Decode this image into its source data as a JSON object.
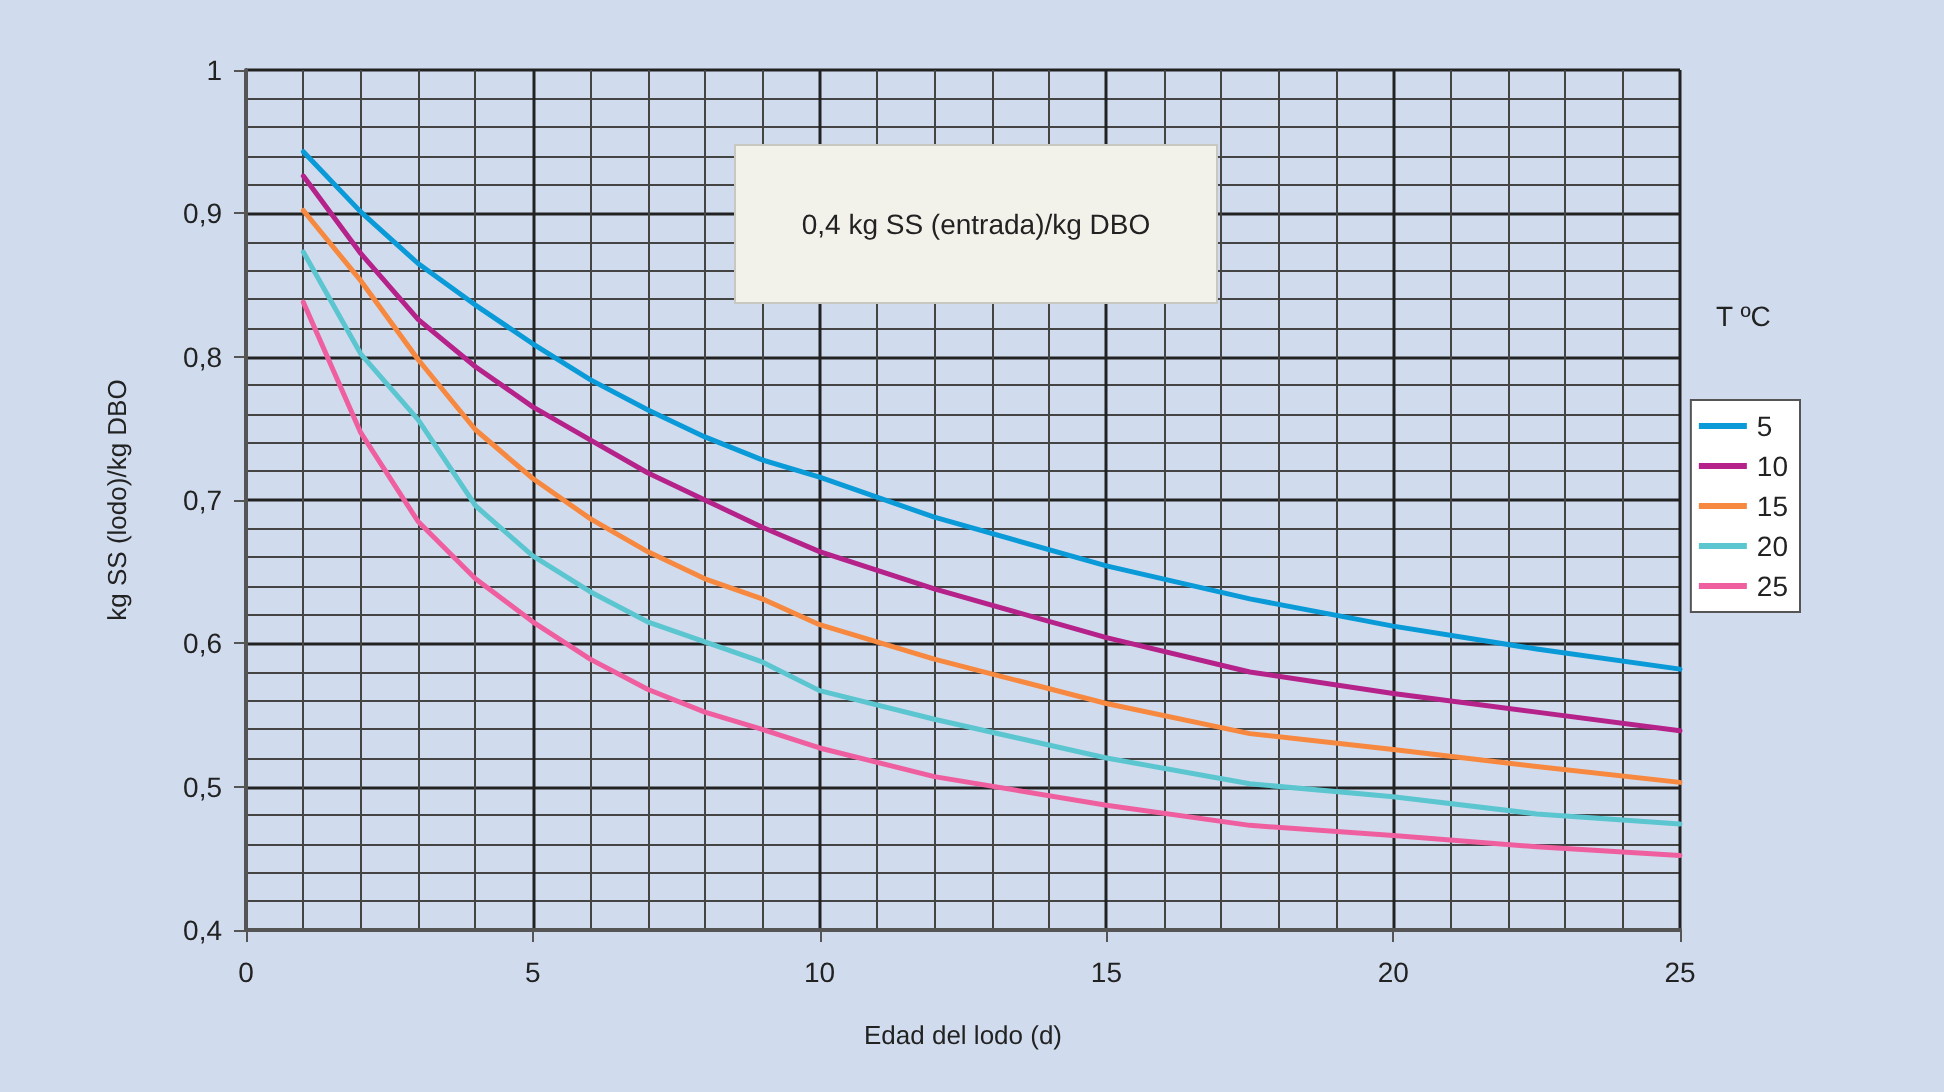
{
  "chart_data": {
    "type": "line",
    "xlabel": "Edad del lodo (d)",
    "ylabel": "kg SS (lodo)/kg DBO",
    "legend_title": "T ºC",
    "annotations": [
      "0,4 kg SS (entrada)/kg DBO"
    ],
    "x": [
      1,
      2,
      3,
      4,
      5,
      6,
      7,
      8,
      9,
      10,
      12,
      15,
      17.5,
      20,
      22.5,
      25
    ],
    "series": [
      {
        "name": "5",
        "color": "#0a9ad8",
        "values": [
          0.943,
          0.901,
          0.865,
          0.836,
          0.809,
          0.784,
          0.763,
          0.744,
          0.728,
          0.716,
          0.688,
          0.654,
          0.631,
          0.612,
          0.596,
          0.582
        ]
      },
      {
        "name": "10",
        "color": "#b5228a",
        "values": [
          0.926,
          0.872,
          0.826,
          0.793,
          0.765,
          0.742,
          0.719,
          0.7,
          0.681,
          0.664,
          0.638,
          0.604,
          0.58,
          0.565,
          0.552,
          0.539
        ]
      },
      {
        "name": "15",
        "color": "#f7883f",
        "values": [
          0.902,
          0.853,
          0.798,
          0.749,
          0.715,
          0.687,
          0.664,
          0.645,
          0.631,
          0.613,
          0.589,
          0.558,
          0.537,
          0.526,
          0.514,
          0.503
        ]
      },
      {
        "name": "20",
        "color": "#5cc6d0",
        "values": [
          0.873,
          0.802,
          0.756,
          0.696,
          0.661,
          0.636,
          0.615,
          0.601,
          0.587,
          0.567,
          0.547,
          0.52,
          0.502,
          0.493,
          0.481,
          0.474
        ]
      },
      {
        "name": "25",
        "color": "#ef5fa0",
        "values": [
          0.838,
          0.747,
          0.685,
          0.645,
          0.615,
          0.589,
          0.568,
          0.552,
          0.54,
          0.527,
          0.507,
          0.487,
          0.473,
          0.466,
          0.458,
          0.452
        ]
      }
    ],
    "xlim": [
      0,
      25
    ],
    "xticks": [
      0,
      5,
      10,
      15,
      20,
      25
    ],
    "ylim": [
      0.4,
      1
    ],
    "yticks": [
      {
        "value": 0.4,
        "label": "0,4"
      },
      {
        "value": 0.5,
        "label": "0,5"
      },
      {
        "value": 0.6,
        "label": "0,6"
      },
      {
        "value": 0.7,
        "label": "0,7"
      },
      {
        "value": 0.8,
        "label": "0,8"
      },
      {
        "value": 0.9,
        "label": "0,9"
      },
      1
    ],
    "grid": true,
    "legend": "right",
    "marker": "none",
    "line_style": "solid"
  }
}
